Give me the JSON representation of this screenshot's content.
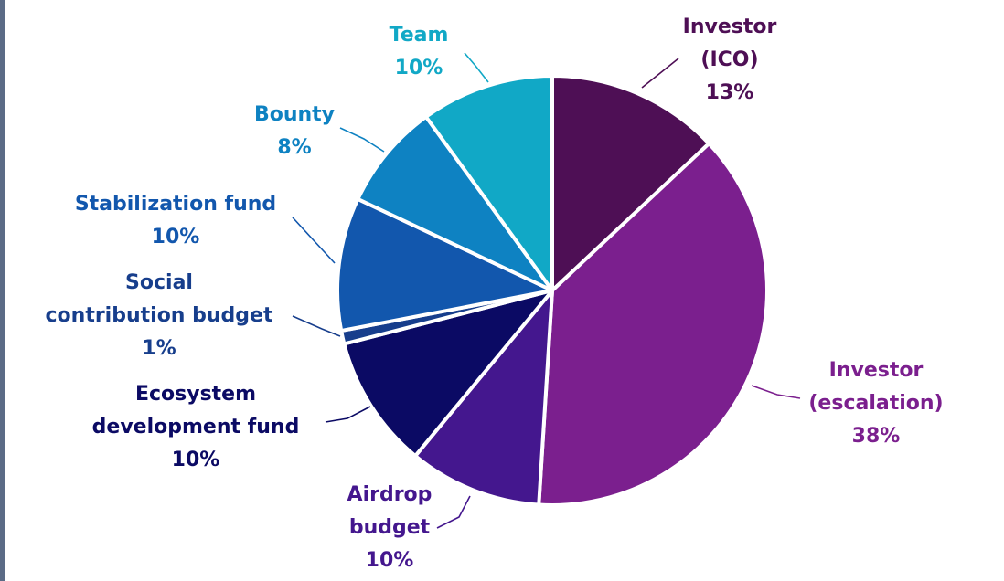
{
  "chart_data": {
    "type": "pie",
    "start_angle_deg": 0,
    "direction": "clockwise",
    "slices": [
      {
        "label_lines": [
          "Investor",
          "(ICO)",
          "13%"
        ],
        "value": 13,
        "color": "#4e0f55",
        "label_color": "#4e0f55"
      },
      {
        "label_lines": [
          "Investor",
          "(escalation)",
          "38%"
        ],
        "value": 38,
        "color": "#7b1f8e",
        "label_color": "#7b1f8e"
      },
      {
        "label_lines": [
          "Airdrop",
          "budget",
          "10%"
        ],
        "value": 10,
        "color": "#44178e",
        "label_color": "#44178e"
      },
      {
        "label_lines": [
          "Ecosystem",
          "development fund",
          "10%"
        ],
        "value": 10,
        "color": "#0b0a64",
        "label_color": "#0b0a64"
      },
      {
        "label_lines": [
          "Social",
          "contribution budget",
          "1%"
        ],
        "value": 1,
        "color": "#173e8c",
        "label_color": "#173e8c"
      },
      {
        "label_lines": [
          "Stabilization fund",
          "10%"
        ],
        "value": 10,
        "color": "#1257ad",
        "label_color": "#1257ad"
      },
      {
        "label_lines": [
          "Bounty",
          "8%"
        ],
        "value": 8,
        "color": "#0e82c2",
        "label_color": "#0e82c2"
      },
      {
        "label_lines": [
          "Team",
          "10%"
        ],
        "value": 10,
        "color": "#11a8c6",
        "label_color": "#11a8c6"
      }
    ]
  }
}
